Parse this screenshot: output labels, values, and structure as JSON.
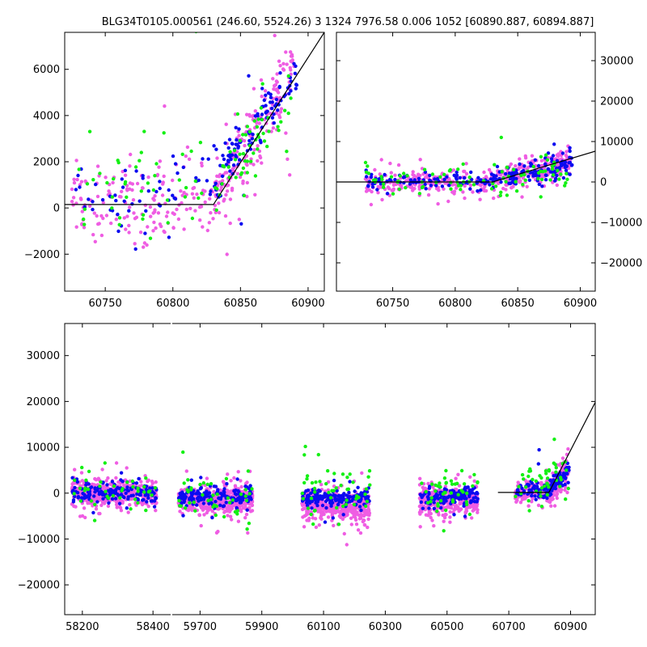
{
  "title": "BLG34T0105.000561 (246.60, 5524.26)   3 1324 7976.58 0.006 1052 [60890.887, 60894.887]",
  "colors": {
    "blue": "#0a0af0",
    "green": "#14f014",
    "magenta": "#ef5de3",
    "line": "#000000",
    "axis": "#000000"
  },
  "chart_data": [
    {
      "id": "zoom-left",
      "type": "scatter",
      "xlim": [
        60720,
        60912
      ],
      "ylim": [
        -3600,
        7600
      ],
      "xticks": [
        60750,
        60800,
        60850,
        60900
      ],
      "yticks": [
        -2000,
        0,
        2000,
        4000,
        6000
      ],
      "ytick_side": "left",
      "model_line": {
        "x": [
          60720,
          60830,
          60912
        ],
        "y": [
          150,
          150,
          7600
        ]
      },
      "point_clouds": [
        {
          "color": "magenta",
          "segments": [
            {
              "x0": 60725,
              "x1": 60830,
              "y0": 200,
              "y1": 400,
              "spread": 1700,
              "n": 170,
              "seed": 11
            },
            {
              "x0": 60830,
              "x1": 60890,
              "y0": 400,
              "y1": 5900,
              "spread": 1400,
              "n": 200,
              "seed": 12
            }
          ]
        },
        {
          "color": "blue",
          "segments": [
            {
              "x0": 60728,
              "x1": 60830,
              "y0": 400,
              "y1": 1500,
              "spread": 1300,
              "n": 55,
              "seed": 13
            },
            {
              "x0": 60830,
              "x1": 60892,
              "y0": 1200,
              "y1": 5800,
              "spread": 900,
              "n": 110,
              "seed": 14
            }
          ]
        },
        {
          "color": "green",
          "segments": [
            {
              "x0": 60728,
              "x1": 60830,
              "y0": 600,
              "y1": 1400,
              "spread": 1800,
              "n": 45,
              "seed": 15
            },
            {
              "x0": 60830,
              "x1": 60890,
              "y0": 1000,
              "y1": 4800,
              "spread": 1300,
              "n": 55,
              "seed": 16
            }
          ]
        }
      ]
    },
    {
      "id": "zoom-right",
      "type": "scatter",
      "xlim": [
        60705,
        60912
      ],
      "ylim": [
        -27000,
        37000
      ],
      "xticks": [
        60750,
        60800,
        60850,
        60900
      ],
      "yticks": [
        -20000,
        -10000,
        0,
        10000,
        20000,
        30000
      ],
      "ytick_side": "right",
      "model_line": {
        "x": [
          60705,
          60830,
          60912
        ],
        "y": [
          0,
          0,
          7600
        ]
      },
      "point_clouds": [
        {
          "color": "magenta",
          "segments": [
            {
              "x0": 60728,
              "x1": 60830,
              "y0": -200,
              "y1": 300,
              "spread": 2500,
              "n": 220,
              "seed": 21
            },
            {
              "x0": 60830,
              "x1": 60892,
              "y0": 300,
              "y1": 4500,
              "spread": 3000,
              "n": 230,
              "seed": 22
            }
          ]
        },
        {
          "color": "blue",
          "segments": [
            {
              "x0": 60728,
              "x1": 60830,
              "y0": 0,
              "y1": 800,
              "spread": 1800,
              "n": 90,
              "seed": 23
            },
            {
              "x0": 60830,
              "x1": 60894,
              "y0": 800,
              "y1": 4500,
              "spread": 2500,
              "n": 120,
              "seed": 24
            }
          ]
        },
        {
          "color": "green",
          "segments": [
            {
              "x0": 60728,
              "x1": 60830,
              "y0": 200,
              "y1": 800,
              "spread": 3500,
              "n": 45,
              "seed": 25
            },
            {
              "x0": 60830,
              "x1": 60890,
              "y0": 800,
              "y1": 3000,
              "spread": 4000,
              "n": 45,
              "seed": 26
            }
          ]
        }
      ]
    },
    {
      "id": "full-lightcurve",
      "type": "scatter",
      "broken_x": true,
      "ylim": [
        -26500,
        37000
      ],
      "yticks": [
        -20000,
        -10000,
        0,
        10000,
        20000,
        30000
      ],
      "ytick_side": "left",
      "panels": [
        {
          "xlim": [
            58150,
            58450
          ],
          "xticks": [
            58200,
            58400
          ]
        },
        {
          "xlim": [
            59610,
            60980
          ],
          "xticks": [
            59700,
            59900,
            60100,
            60300,
            60500,
            60700,
            60900
          ]
        }
      ],
      "model_line": {
        "x": [
          60665,
          60830,
          60980
        ],
        "y": [
          150,
          150,
          19800
        ]
      },
      "point_clouds": [
        {
          "color": "magenta",
          "segments": [
            {
              "x0": 58170,
              "x1": 58410,
              "y0": 0,
              "y1": 0,
              "spread": 2300,
              "n": 450,
              "seed": 31
            },
            {
              "x0": 59630,
              "x1": 59870,
              "y0": -1500,
              "y1": -1500,
              "spread": 2500,
              "n": 450,
              "seed": 32
            },
            {
              "x0": 60030,
              "x1": 60250,
              "y0": -2000,
              "y1": -3500,
              "spread": 2600,
              "n": 450,
              "seed": 33
            },
            {
              "x0": 60410,
              "x1": 60600,
              "y0": -1500,
              "y1": -1500,
              "spread": 2600,
              "n": 400,
              "seed": 34
            },
            {
              "x0": 60720,
              "x1": 60830,
              "y0": 0,
              "y1": 300,
              "spread": 2200,
              "n": 120,
              "seed": 35
            },
            {
              "x0": 60830,
              "x1": 60895,
              "y0": 300,
              "y1": 5000,
              "spread": 2800,
              "n": 140,
              "seed": 36
            }
          ]
        },
        {
          "color": "blue",
          "segments": [
            {
              "x0": 58170,
              "x1": 58410,
              "y0": 0,
              "y1": 0,
              "spread": 1800,
              "n": 160,
              "seed": 41
            },
            {
              "x0": 59630,
              "x1": 59870,
              "y0": -800,
              "y1": -800,
              "spread": 1800,
              "n": 160,
              "seed": 42
            },
            {
              "x0": 60030,
              "x1": 60250,
              "y0": -800,
              "y1": -1500,
              "spread": 1800,
              "n": 170,
              "seed": 43
            },
            {
              "x0": 60410,
              "x1": 60600,
              "y0": -800,
              "y1": -800,
              "spread": 1800,
              "n": 130,
              "seed": 44
            },
            {
              "x0": 60720,
              "x1": 60830,
              "y0": 500,
              "y1": 800,
              "spread": 1700,
              "n": 60,
              "seed": 45
            },
            {
              "x0": 60830,
              "x1": 60895,
              "y0": 800,
              "y1": 5000,
              "spread": 2200,
              "n": 70,
              "seed": 46
            }
          ]
        },
        {
          "color": "green",
          "segments": [
            {
              "x0": 58170,
              "x1": 58410,
              "y0": 500,
              "y1": 500,
              "spread": 4000,
              "n": 40,
              "seed": 51
            },
            {
              "x0": 59630,
              "x1": 59870,
              "y0": 0,
              "y1": 0,
              "spread": 4500,
              "n": 45,
              "seed": 52
            },
            {
              "x0": 60030,
              "x1": 60250,
              "y0": 0,
              "y1": 0,
              "spread": 4500,
              "n": 50,
              "seed": 53
            },
            {
              "x0": 60410,
              "x1": 60600,
              "y0": 500,
              "y1": 500,
              "spread": 4200,
              "n": 45,
              "seed": 54
            },
            {
              "x0": 60720,
              "x1": 60895,
              "y0": 1500,
              "y1": 4000,
              "spread": 4500,
              "n": 45,
              "seed": 55
            }
          ]
        }
      ]
    }
  ]
}
